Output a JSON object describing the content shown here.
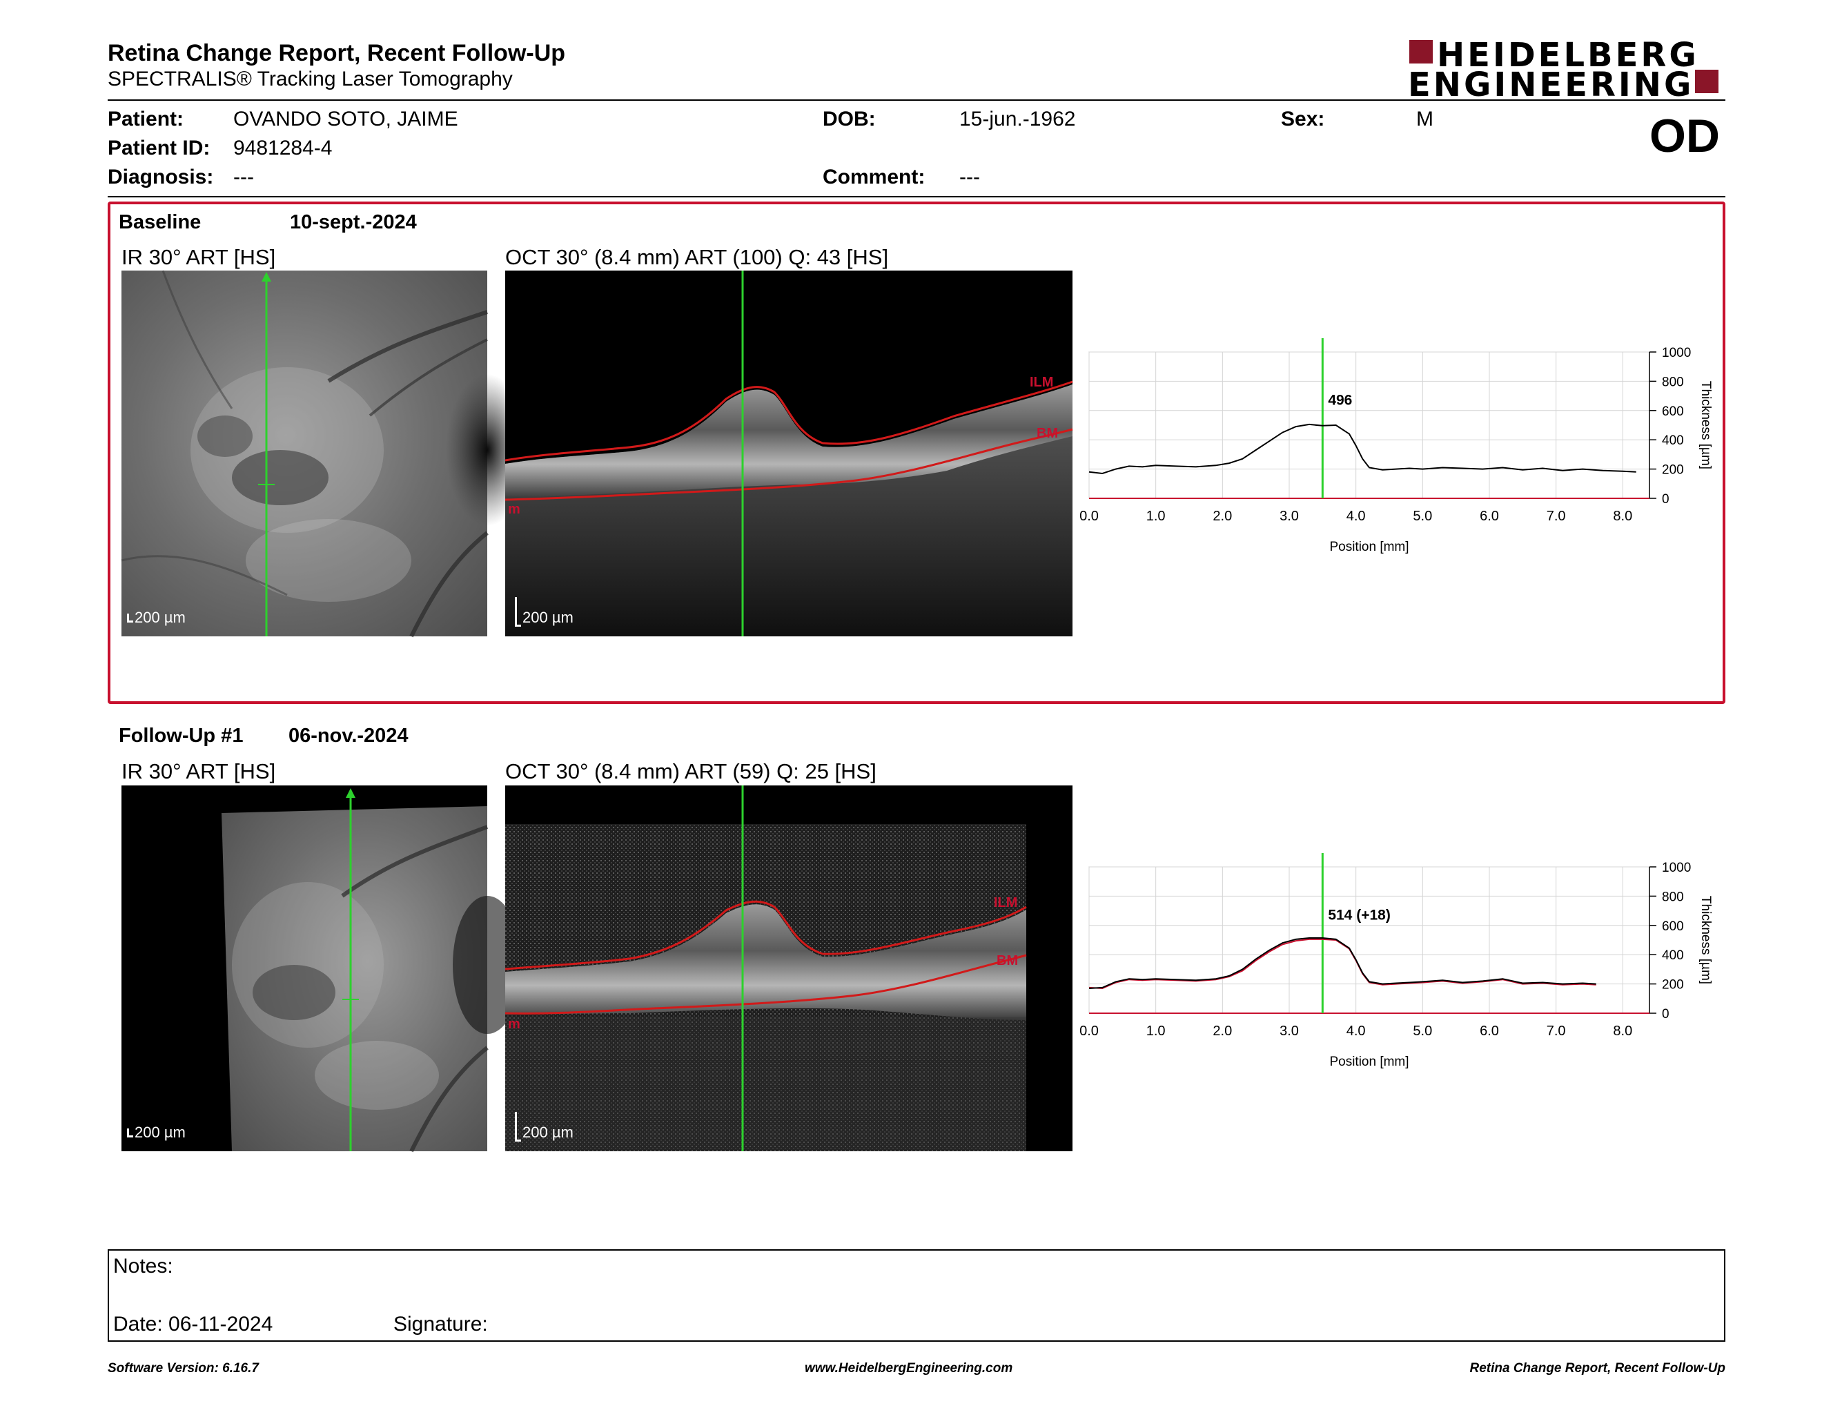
{
  "header": {
    "title": "Retina Change Report, Recent Follow-Up",
    "subtitle": "SPECTRALIS® Tracking Laser Tomography",
    "logo_line1": "HEIDELBERG",
    "logo_line2": "ENGINEERING",
    "eye": "OD"
  },
  "patient": {
    "name_label": "Patient:",
    "name": "OVANDO SOTO, JAIME",
    "id_label": "Patient ID:",
    "id": "9481284-4",
    "diagnosis_label": "Diagnosis:",
    "diagnosis": "---",
    "dob_label": "DOB:",
    "dob": "15-jun.-1962",
    "comment_label": "Comment:",
    "comment": "---",
    "sex_label": "Sex:",
    "sex": "M"
  },
  "baseline": {
    "label": "Baseline",
    "date": "10-sept.-2024",
    "ir_title": "IR 30° ART [HS]",
    "oct_title": "OCT 30° (8.4 mm) ART (100) Q: 43 [HS]",
    "ir_scale": "200 µm",
    "oct_scale": "200 µm",
    "layer_top": "ILM",
    "layer_bottom": "BM",
    "layer_left": "m"
  },
  "followup": {
    "label": "Follow-Up #1",
    "date": "06-nov.-2024",
    "ir_title": "IR 30° ART [HS]",
    "oct_title": "OCT 30° (8.4 mm) ART (59) Q: 25 [HS]",
    "ir_scale": "200 µm",
    "oct_scale": "200 µm",
    "layer_top": "ILM",
    "layer_bottom": "BM",
    "layer_left": "m"
  },
  "chart_data": [
    {
      "type": "line",
      "xlabel": "Position [mm]",
      "ylabel": "Thickness [µm]",
      "xlim": [
        0,
        8.4
      ],
      "ylim": [
        0,
        1000
      ],
      "xticks": [
        "0.0",
        "1.0",
        "2.0",
        "3.0",
        "4.0",
        "5.0",
        "6.0",
        "7.0",
        "8.0"
      ],
      "yticks": [
        "0",
        "200",
        "400",
        "600",
        "800",
        "1000"
      ],
      "cursor_x": 3.5,
      "annotation": "496",
      "series": [
        {
          "color": "#000000",
          "x": [
            0.0,
            0.2,
            0.4,
            0.6,
            0.8,
            1.0,
            1.3,
            1.6,
            1.9,
            2.1,
            2.3,
            2.5,
            2.7,
            2.9,
            3.1,
            3.3,
            3.5,
            3.7,
            3.9,
            4.0,
            4.1,
            4.2,
            4.4,
            4.6,
            4.8,
            5.0,
            5.3,
            5.6,
            5.9,
            6.2,
            6.5,
            6.8,
            7.1,
            7.4,
            7.7,
            8.0,
            8.2
          ],
          "y": [
            180,
            170,
            200,
            220,
            215,
            225,
            220,
            215,
            225,
            240,
            270,
            330,
            390,
            450,
            490,
            505,
            496,
            500,
            440,
            360,
            270,
            210,
            195,
            200,
            205,
            200,
            210,
            205,
            200,
            210,
            195,
            205,
            190,
            200,
            190,
            185,
            180
          ]
        }
      ]
    },
    {
      "type": "line",
      "xlabel": "Position [mm]",
      "ylabel": "Thickness [µm]",
      "xlim": [
        0,
        8.4
      ],
      "ylim": [
        0,
        1000
      ],
      "xticks": [
        "0.0",
        "1.0",
        "2.0",
        "3.0",
        "4.0",
        "5.0",
        "6.0",
        "7.0",
        "8.0"
      ],
      "yticks": [
        "0",
        "200",
        "400",
        "600",
        "800",
        "1000"
      ],
      "cursor_x": 3.5,
      "annotation": "514 (+18)",
      "series": [
        {
          "color": "#c8102e",
          "x": [
            0.0,
            0.2,
            0.4,
            0.6,
            0.8,
            1.0,
            1.3,
            1.6,
            1.9,
            2.1,
            2.3,
            2.5,
            2.7,
            2.9,
            3.1,
            3.3,
            3.5,
            3.7,
            3.9,
            4.0,
            4.1,
            4.2,
            4.4,
            4.6,
            4.8,
            5.0,
            5.3,
            5.6,
            5.9,
            6.2,
            6.5,
            6.8,
            7.1,
            7.4,
            7.6
          ],
          "y": [
            175,
            170,
            210,
            230,
            225,
            230,
            225,
            220,
            230,
            250,
            290,
            360,
            420,
            470,
            495,
            505,
            505,
            500,
            440,
            360,
            270,
            210,
            195,
            200,
            205,
            210,
            220,
            205,
            215,
            230,
            200,
            205,
            195,
            200,
            195
          ]
        },
        {
          "color": "#000000",
          "x": [
            0.0,
            0.2,
            0.4,
            0.6,
            0.8,
            1.0,
            1.3,
            1.6,
            1.9,
            2.1,
            2.3,
            2.5,
            2.7,
            2.9,
            3.1,
            3.3,
            3.5,
            3.7,
            3.9,
            4.0,
            4.1,
            4.2,
            4.4,
            4.6,
            4.8,
            5.0,
            5.3,
            5.6,
            5.9,
            6.2,
            6.5,
            6.8,
            7.1,
            7.4,
            7.6
          ],
          "y": [
            170,
            175,
            215,
            235,
            230,
            235,
            230,
            225,
            235,
            255,
            300,
            370,
            430,
            480,
            505,
            514,
            514,
            505,
            445,
            365,
            275,
            215,
            200,
            205,
            210,
            215,
            225,
            210,
            220,
            235,
            205,
            210,
            200,
            205,
            200
          ]
        }
      ]
    }
  ],
  "notes": {
    "notes_label": "Notes:",
    "date_label": "Date: 06-11-2024",
    "signature_label": "Signature:"
  },
  "footer": {
    "left": "Software Version: 6.16.7",
    "center": "www.HeidelbergEngineering.com",
    "right": "Retina Change Report, Recent Follow-Up"
  }
}
